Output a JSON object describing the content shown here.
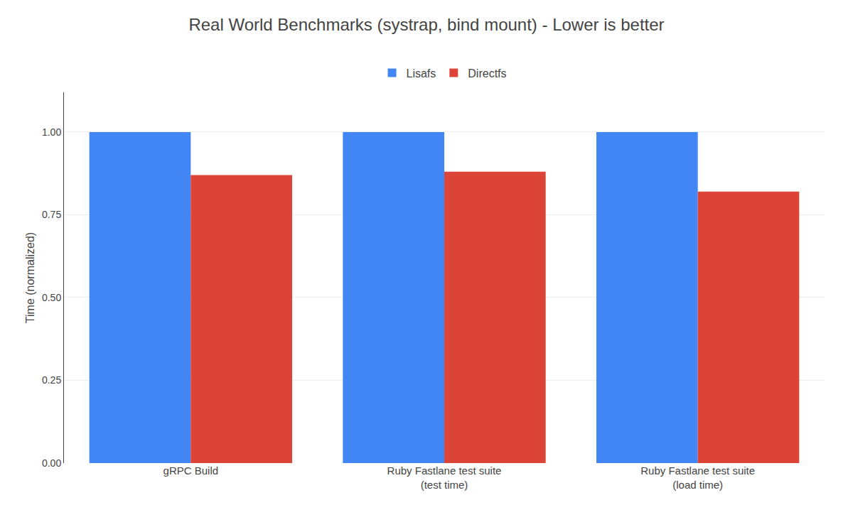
{
  "chart_data": {
    "type": "bar",
    "title": "Real World Benchmarks (systrap, bind mount) - Lower is better",
    "categories": [
      "gRPC Build",
      "Ruby Fastlane test suite\n(test time)",
      "Ruby Fastlane test suite\n(load time)"
    ],
    "series": [
      {
        "name": "Lisafs",
        "color": "#4285F4",
        "values": [
          1.0,
          1.0,
          1.0
        ]
      },
      {
        "name": "Directfs",
        "color": "#DB4437",
        "values": [
          0.87,
          0.88,
          0.82
        ]
      }
    ],
    "ylabel": "Time (normalized)",
    "ylim": [
      0,
      1.12
    ],
    "yticks": [
      {
        "value": 0.0,
        "label": "0.00"
      },
      {
        "value": 0.25,
        "label": "0.25"
      },
      {
        "value": 0.5,
        "label": "0.50"
      },
      {
        "value": 0.75,
        "label": "0.75"
      },
      {
        "value": 1.0,
        "label": "1.00"
      }
    ],
    "grid": true,
    "legend": "top"
  }
}
